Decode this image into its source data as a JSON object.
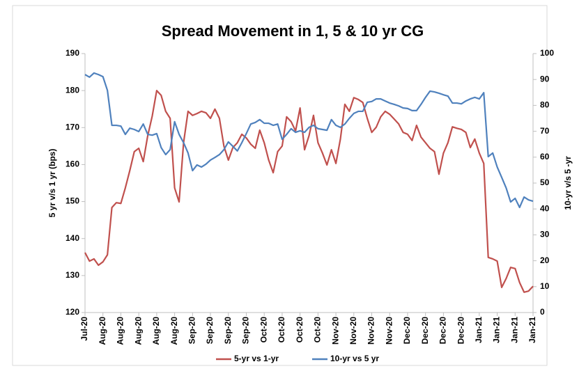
{
  "chart_data": {
    "type": "line",
    "title": "Spread Movement in 1, 5 & 10 yr CG",
    "y_label": "5 yr v/s 1 yr (bps)",
    "y2_label": "10-yr v/s 5 -yr",
    "categories": [
      "Jul-20",
      null,
      null,
      null,
      "Aug-20",
      null,
      null,
      null,
      "Aug-20",
      null,
      null,
      null,
      "Aug-20",
      null,
      null,
      null,
      "Aug-20",
      null,
      null,
      null,
      "Aug-20",
      null,
      null,
      null,
      "Sep-20",
      null,
      null,
      null,
      "Sep-20",
      null,
      null,
      null,
      "Sep-20",
      null,
      null,
      null,
      "Sep-20",
      null,
      null,
      null,
      "Oct-20",
      null,
      null,
      null,
      "Oct-20",
      null,
      null,
      null,
      "Oct-20",
      null,
      null,
      null,
      "Oct-20",
      null,
      null,
      null,
      "Nov-20",
      null,
      null,
      null,
      "Nov-20",
      null,
      null,
      null,
      "Nov-20",
      null,
      null,
      null,
      "Nov-20",
      null,
      null,
      null,
      "Dec-20",
      null,
      null,
      null,
      "Dec-20",
      null,
      null,
      null,
      "Dec-20",
      null,
      null,
      null,
      "Dec-20",
      null,
      null,
      null,
      "Jan-21",
      null,
      null,
      null,
      "Jan-21",
      null,
      null,
      null,
      "Jan-21",
      null,
      null,
      null,
      "Jan-21"
    ],
    "series": [
      {
        "name": "5-yr vs 1-yr",
        "color": "#c0504d",
        "axis": "y",
        "values": [
          136.2,
          133.9,
          134.5,
          132.8,
          133.7,
          135.6,
          148.4,
          149.7,
          149.5,
          153.7,
          158.4,
          163.5,
          164.4,
          160.8,
          167.8,
          173.1,
          180.0,
          178.7,
          174.4,
          172.5,
          153.7,
          149.9,
          165.9,
          174.4,
          173.3,
          173.8,
          174.4,
          174.0,
          172.5,
          175.0,
          172.5,
          165.0,
          161.2,
          164.6,
          165.9,
          168.2,
          167.2,
          165.5,
          164.4,
          169.3,
          165.9,
          161.2,
          157.8,
          163.5,
          165.0,
          172.9,
          171.6,
          169.1,
          175.3,
          164.0,
          167.8,
          173.3,
          165.9,
          163.1,
          159.9,
          164.0,
          160.3,
          166.9,
          176.3,
          174.4,
          178.1,
          177.6,
          176.8,
          172.5,
          168.7,
          170.1,
          172.9,
          174.4,
          173.6,
          172.3,
          171.0,
          168.7,
          168.2,
          166.5,
          170.6,
          167.4,
          165.9,
          164.4,
          163.5,
          157.4,
          163.1,
          165.9,
          170.2,
          169.8,
          169.5,
          168.7,
          164.6,
          166.9,
          163.1,
          160.3,
          134.9,
          134.5,
          133.9,
          126.8,
          129.2,
          132.2,
          131.9,
          128.1,
          125.5,
          125.8,
          127.1
        ]
      },
      {
        "name": "10-yr vs 5 yr",
        "color": "#4f81bd",
        "axis": "y2",
        "values": [
          91.9,
          90.9,
          92.5,
          91.9,
          91.1,
          85.8,
          72.3,
          72.3,
          72.0,
          68.8,
          71.2,
          70.7,
          69.9,
          72.8,
          68.8,
          68.5,
          69.1,
          63.7,
          61.0,
          62.9,
          73.7,
          68.8,
          65.6,
          61.6,
          54.8,
          57.0,
          56.2,
          57.3,
          58.9,
          59.9,
          61.0,
          62.9,
          65.9,
          64.2,
          62.4,
          65.6,
          69.1,
          72.8,
          73.4,
          74.5,
          73.1,
          73.1,
          72.3,
          72.8,
          66.9,
          68.8,
          71.0,
          69.6,
          70.2,
          69.6,
          71.5,
          72.3,
          71.0,
          70.7,
          70.4,
          74.5,
          72.3,
          71.5,
          72.8,
          75.0,
          76.9,
          77.7,
          77.7,
          81.2,
          81.5,
          82.5,
          82.5,
          81.7,
          80.9,
          80.4,
          79.8,
          79.0,
          78.8,
          78.0,
          78.0,
          80.4,
          83.1,
          85.5,
          85.2,
          84.7,
          84.1,
          83.6,
          80.9,
          80.9,
          80.6,
          81.7,
          82.5,
          83.1,
          82.5,
          84.9,
          60.2,
          61.6,
          56.2,
          52.2,
          48.1,
          42.7,
          44.1,
          40.6,
          44.6,
          43.5,
          43.0
        ]
      }
    ],
    "ylim": [
      120,
      190
    ],
    "yticks": [
      120,
      130,
      140,
      150,
      160,
      170,
      180,
      190
    ],
    "y2lim": [
      0,
      100
    ],
    "y2ticks": [
      0,
      10,
      20,
      30,
      40,
      50,
      60,
      70,
      80,
      90,
      100
    ],
    "legend": "bottom"
  }
}
